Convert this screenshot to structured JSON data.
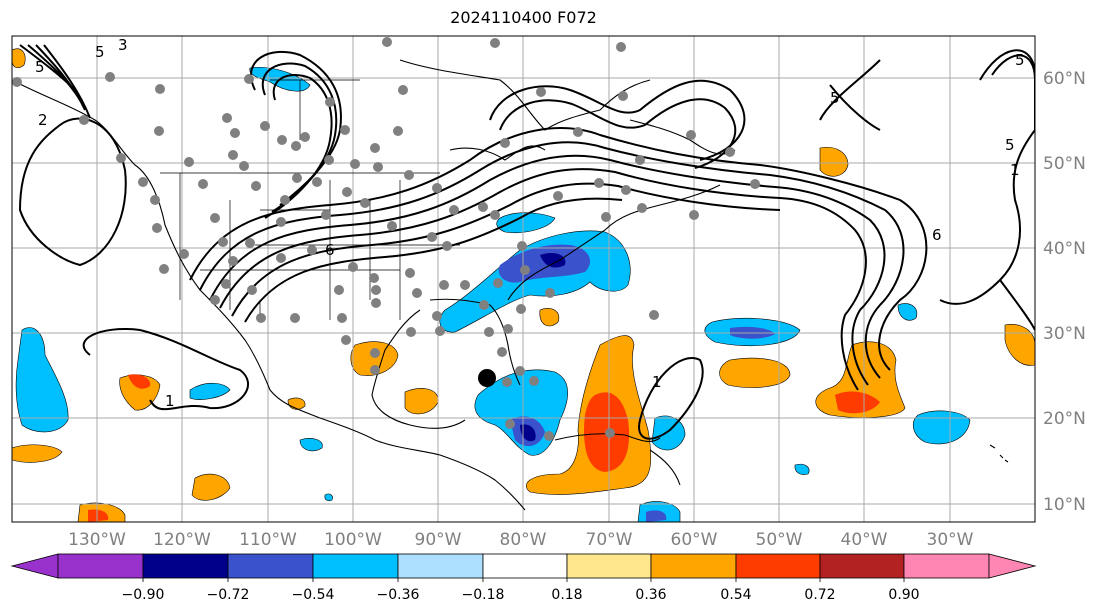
{
  "title": "2024110400 F072",
  "map": {
    "lon_range": [
      -137,
      -17
    ],
    "lat_range": [
      8,
      65
    ],
    "meridian_labels": [
      "130°W",
      "120°W",
      "110°W",
      "100°W",
      "90°W",
      "80°W",
      "70°W",
      "60°W",
      "50°W",
      "40°W",
      "30°W"
    ],
    "parallel_labels": [
      "60°N",
      "50°N",
      "40°N",
      "30°N",
      "20°N",
      "10°N"
    ],
    "contour_labels": [
      "5",
      "5",
      "6",
      "2",
      "5",
      "1",
      "5",
      "3",
      "6",
      "5",
      "1",
      "1"
    ],
    "storm_center": {
      "lon": -84.5,
      "lat": 24.5
    }
  },
  "colorbar": {
    "tick_labels": [
      "−0.90",
      "−0.72",
      "−0.54",
      "−0.36",
      "−0.18",
      "0.18",
      "0.36",
      "0.54",
      "0.72",
      "0.90"
    ],
    "colors": [
      "#9932cc",
      "#00008b",
      "#3a52cc",
      "#00bfff",
      "#addfff",
      "#ffffff",
      "#ffe88c",
      "#ffa500",
      "#ff3c00",
      "#b22222",
      "#ff85b2"
    ]
  }
}
